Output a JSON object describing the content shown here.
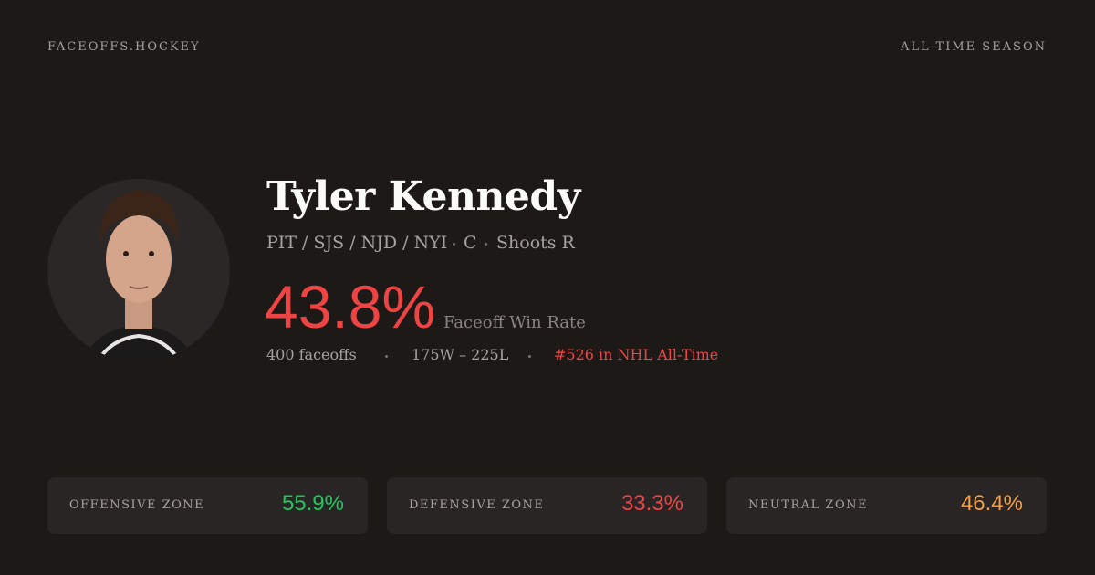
{
  "header": {
    "site": "FACEOFFS.HOCKEY",
    "scope": "ALL-TIME SEASON"
  },
  "player": {
    "name": "Tyler Kennedy",
    "teams": "PIT / SJS / NJD / NYI",
    "position": "C",
    "shoots": "Shoots R",
    "win_rate": "43.8%",
    "win_rate_label": "Faceoff Win Rate",
    "faceoffs": "400 faceoffs",
    "record": "175W – 225L",
    "rank": "#526 in NHL All-Time"
  },
  "zones": [
    {
      "label": "OFFENSIVE ZONE",
      "value": "55.9%"
    },
    {
      "label": "DEFENSIVE ZONE",
      "value": "33.3%"
    },
    {
      "label": "NEUTRAL ZONE",
      "value": "46.4%"
    }
  ]
}
